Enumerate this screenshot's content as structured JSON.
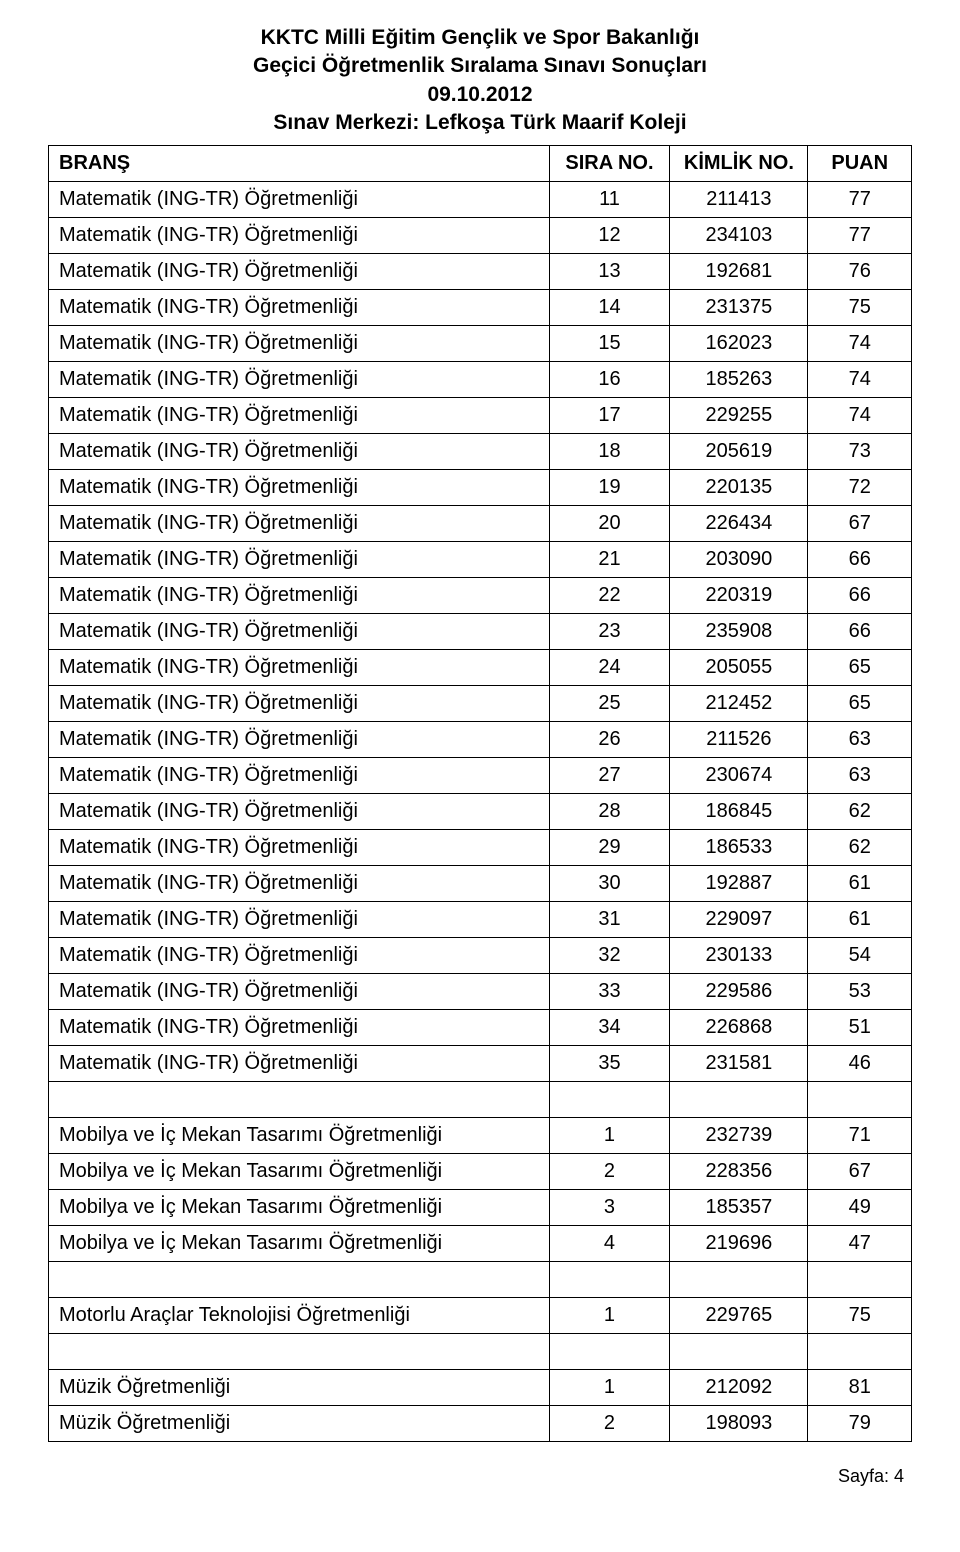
{
  "header": {
    "line1": "KKTC Milli Eğitim Gençlik ve Spor Bakanlığı",
    "line2": "Geçici Öğretmenlik Sıralama Sınavı Sonuçları",
    "line3": "09.10.2012",
    "line4": "Sınav Merkezi: Lefkoşa Türk Maarif Koleji"
  },
  "columns": {
    "brans": "BRANŞ",
    "sira": "SIRA NO.",
    "kimlik": "KİMLİK NO.",
    "puan": "PUAN"
  },
  "rows": [
    {
      "brans": "Matematik (ING-TR) Öğretmenliği",
      "sira": "11",
      "kimlik": "211413",
      "puan": "77"
    },
    {
      "brans": "Matematik (ING-TR) Öğretmenliği",
      "sira": "12",
      "kimlik": "234103",
      "puan": "77"
    },
    {
      "brans": "Matematik (ING-TR) Öğretmenliği",
      "sira": "13",
      "kimlik": "192681",
      "puan": "76"
    },
    {
      "brans": "Matematik (ING-TR) Öğretmenliği",
      "sira": "14",
      "kimlik": "231375",
      "puan": "75"
    },
    {
      "brans": "Matematik (ING-TR) Öğretmenliği",
      "sira": "15",
      "kimlik": "162023",
      "puan": "74"
    },
    {
      "brans": "Matematik (ING-TR) Öğretmenliği",
      "sira": "16",
      "kimlik": "185263",
      "puan": "74"
    },
    {
      "brans": "Matematik (ING-TR) Öğretmenliği",
      "sira": "17",
      "kimlik": "229255",
      "puan": "74"
    },
    {
      "brans": "Matematik (ING-TR) Öğretmenliği",
      "sira": "18",
      "kimlik": "205619",
      "puan": "73"
    },
    {
      "brans": "Matematik (ING-TR) Öğretmenliği",
      "sira": "19",
      "kimlik": "220135",
      "puan": "72"
    },
    {
      "brans": "Matematik (ING-TR) Öğretmenliği",
      "sira": "20",
      "kimlik": "226434",
      "puan": "67"
    },
    {
      "brans": "Matematik (ING-TR) Öğretmenliği",
      "sira": "21",
      "kimlik": "203090",
      "puan": "66"
    },
    {
      "brans": "Matematik (ING-TR) Öğretmenliği",
      "sira": "22",
      "kimlik": "220319",
      "puan": "66"
    },
    {
      "brans": "Matematik (ING-TR) Öğretmenliği",
      "sira": "23",
      "kimlik": "235908",
      "puan": "66"
    },
    {
      "brans": "Matematik (ING-TR) Öğretmenliği",
      "sira": "24",
      "kimlik": "205055",
      "puan": "65"
    },
    {
      "brans": "Matematik (ING-TR) Öğretmenliği",
      "sira": "25",
      "kimlik": "212452",
      "puan": "65"
    },
    {
      "brans": "Matematik (ING-TR) Öğretmenliği",
      "sira": "26",
      "kimlik": "211526",
      "puan": "63"
    },
    {
      "brans": "Matematik (ING-TR) Öğretmenliği",
      "sira": "27",
      "kimlik": "230674",
      "puan": "63"
    },
    {
      "brans": "Matematik (ING-TR) Öğretmenliği",
      "sira": "28",
      "kimlik": "186845",
      "puan": "62"
    },
    {
      "brans": "Matematik (ING-TR) Öğretmenliği",
      "sira": "29",
      "kimlik": "186533",
      "puan": "62"
    },
    {
      "brans": "Matematik (ING-TR) Öğretmenliği",
      "sira": "30",
      "kimlik": "192887",
      "puan": "61"
    },
    {
      "brans": "Matematik (ING-TR) Öğretmenliği",
      "sira": "31",
      "kimlik": "229097",
      "puan": "61"
    },
    {
      "brans": "Matematik (ING-TR) Öğretmenliği",
      "sira": "32",
      "kimlik": "230133",
      "puan": "54"
    },
    {
      "brans": "Matematik (ING-TR) Öğretmenliği",
      "sira": "33",
      "kimlik": "229586",
      "puan": "53"
    },
    {
      "brans": "Matematik (ING-TR) Öğretmenliği",
      "sira": "34",
      "kimlik": "226868",
      "puan": "51"
    },
    {
      "brans": "Matematik (ING-TR) Öğretmenliği",
      "sira": "35",
      "kimlik": "231581",
      "puan": "46"
    },
    {
      "empty": true
    },
    {
      "brans": "Mobilya ve İç Mekan Tasarımı Öğretmenliği",
      "sira": "1",
      "kimlik": "232739",
      "puan": "71"
    },
    {
      "brans": "Mobilya ve İç Mekan Tasarımı Öğretmenliği",
      "sira": "2",
      "kimlik": "228356",
      "puan": "67"
    },
    {
      "brans": "Mobilya ve İç Mekan Tasarımı Öğretmenliği",
      "sira": "3",
      "kimlik": "185357",
      "puan": "49"
    },
    {
      "brans": "Mobilya ve İç Mekan Tasarımı Öğretmenliği",
      "sira": "4",
      "kimlik": "219696",
      "puan": "47"
    },
    {
      "empty": true
    },
    {
      "brans": "Motorlu Araçlar Teknolojisi Öğretmenliği",
      "sira": "1",
      "kimlik": "229765",
      "puan": "75"
    },
    {
      "empty": true
    },
    {
      "brans": "Müzik Öğretmenliği",
      "sira": "1",
      "kimlik": "212092",
      "puan": "81"
    },
    {
      "brans": "Müzik Öğretmenliği",
      "sira": "2",
      "kimlik": "198093",
      "puan": "79"
    }
  ],
  "footer": {
    "page_label": "Sayfa: 4"
  }
}
